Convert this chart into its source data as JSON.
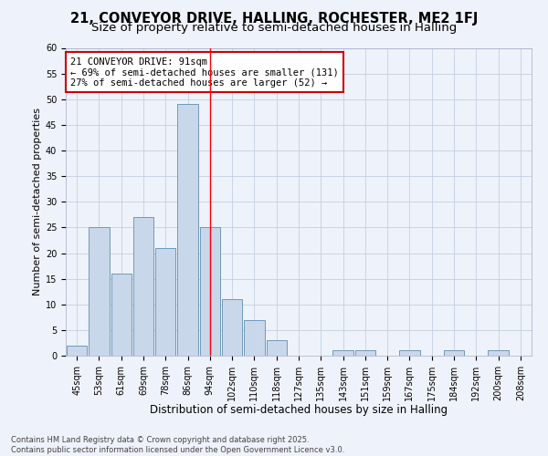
{
  "title": "21, CONVEYOR DRIVE, HALLING, ROCHESTER, ME2 1FJ",
  "subtitle": "Size of property relative to semi-detached houses in Halling",
  "xlabel": "Distribution of semi-detached houses by size in Halling",
  "ylabel": "Number of semi-detached properties",
  "bin_labels": [
    "45sqm",
    "53sqm",
    "61sqm",
    "69sqm",
    "78sqm",
    "86sqm",
    "94sqm",
    "102sqm",
    "110sqm",
    "118sqm",
    "127sqm",
    "135sqm",
    "143sqm",
    "151sqm",
    "159sqm",
    "167sqm",
    "175sqm",
    "184sqm",
    "192sqm",
    "200sqm",
    "208sqm"
  ],
  "bin_values": [
    2,
    25,
    16,
    27,
    21,
    49,
    25,
    11,
    7,
    3,
    0,
    0,
    1,
    1,
    0,
    1,
    0,
    1,
    0,
    1,
    0
  ],
  "bar_color": "#c8d8ea",
  "bar_edge_color": "#7099bb",
  "grid_color": "#c5cfe0",
  "background_color": "#eef2fa",
  "red_line_x": 6,
  "annotation_text": "21 CONVEYOR DRIVE: 91sqm\n← 69% of semi-detached houses are smaller (131)\n27% of semi-detached houses are larger (52) →",
  "annotation_box_color": "#ffffff",
  "annotation_box_edge": "#cc0000",
  "ylim": [
    0,
    60
  ],
  "yticks": [
    0,
    5,
    10,
    15,
    20,
    25,
    30,
    35,
    40,
    45,
    50,
    55,
    60
  ],
  "footer_text": "Contains HM Land Registry data © Crown copyright and database right 2025.\nContains public sector information licensed under the Open Government Licence v3.0.",
  "title_fontsize": 10.5,
  "subtitle_fontsize": 9.5,
  "xlabel_fontsize": 8.5,
  "ylabel_fontsize": 8,
  "tick_fontsize": 7,
  "annotation_fontsize": 7.5,
  "footer_fontsize": 6
}
